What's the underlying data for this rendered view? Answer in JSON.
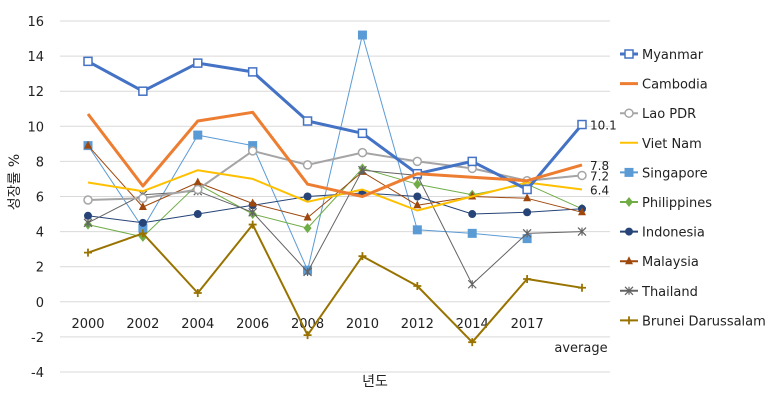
{
  "chart_data": {
    "type": "line",
    "title": "",
    "xlabel": "년도",
    "ylabel": "성장률 %",
    "ylim": [
      -4,
      16
    ],
    "yticks": [
      -4,
      -2,
      0,
      2,
      4,
      6,
      8,
      10,
      12,
      14,
      16
    ],
    "categories": [
      "2000",
      "2002",
      "2004",
      "2006",
      "2008",
      "2010",
      "2012",
      "2014",
      "2017",
      "average"
    ],
    "grid": true,
    "legend_position": "right",
    "series": [
      {
        "name": "Myanmar",
        "color": "#4472C4",
        "marker": "square-open",
        "width": 3,
        "values": [
          13.7,
          12.0,
          13.6,
          13.1,
          10.3,
          9.6,
          7.3,
          8.0,
          6.4,
          10.1
        ]
      },
      {
        "name": "Cambodia",
        "color": "#ED7D31",
        "marker": "none",
        "width": 3,
        "values": [
          10.7,
          6.6,
          10.3,
          10.8,
          6.7,
          6.0,
          7.3,
          7.1,
          6.9,
          7.8
        ]
      },
      {
        "name": "Lao PDR",
        "color": "#A5A5A5",
        "marker": "circle-open",
        "width": 2,
        "values": [
          5.8,
          5.9,
          6.4,
          8.6,
          7.8,
          8.5,
          8.0,
          7.6,
          6.9,
          7.2
        ]
      },
      {
        "name": "Viet Nam",
        "color": "#FFC000",
        "marker": "none",
        "width": 2,
        "values": [
          6.8,
          6.3,
          7.5,
          7.0,
          5.7,
          6.4,
          5.2,
          6.0,
          6.8,
          6.4
        ]
      },
      {
        "name": "Singapore",
        "color": "#5B9BD5",
        "marker": "square",
        "width": 1,
        "values": [
          8.9,
          4.2,
          9.5,
          8.9,
          1.8,
          15.2,
          4.1,
          3.9,
          3.6,
          null
        ]
      },
      {
        "name": "Philippines",
        "color": "#70AD47",
        "marker": "diamond",
        "width": 1,
        "values": [
          4.4,
          3.7,
          6.7,
          5.0,
          4.2,
          7.6,
          6.7,
          6.1,
          6.7,
          5.3
        ]
      },
      {
        "name": "Indonesia",
        "color": "#264478",
        "marker": "circle",
        "width": 1,
        "values": [
          4.9,
          4.5,
          5.0,
          5.5,
          6.0,
          6.2,
          6.0,
          5.0,
          5.1,
          5.3
        ]
      },
      {
        "name": "Malaysia",
        "color": "#9E480E",
        "marker": "triangle",
        "width": 1,
        "values": [
          8.9,
          5.4,
          6.8,
          5.6,
          4.8,
          7.4,
          5.5,
          6.0,
          5.9,
          5.1
        ]
      },
      {
        "name": "Thailand",
        "color": "#636363",
        "marker": "star",
        "width": 1,
        "values": [
          4.5,
          6.1,
          6.3,
          5.1,
          1.7,
          7.5,
          7.2,
          1.0,
          3.9,
          4.0
        ]
      },
      {
        "name": "Brunei Darussalam",
        "color": "#997300",
        "marker": "plus",
        "width": 2,
        "values": [
          2.8,
          3.9,
          0.5,
          4.4,
          -1.9,
          2.6,
          0.9,
          -2.3,
          1.3,
          0.8
        ]
      }
    ],
    "annotations": [
      {
        "text": "10.1",
        "series": "Myanmar",
        "category": "average"
      },
      {
        "text": "7.8",
        "series": "Cambodia",
        "category": "average"
      },
      {
        "text": "7.2",
        "series": "Lao PDR",
        "category": "average"
      },
      {
        "text": "6.4",
        "series": "Viet Nam",
        "category": "average"
      }
    ]
  }
}
